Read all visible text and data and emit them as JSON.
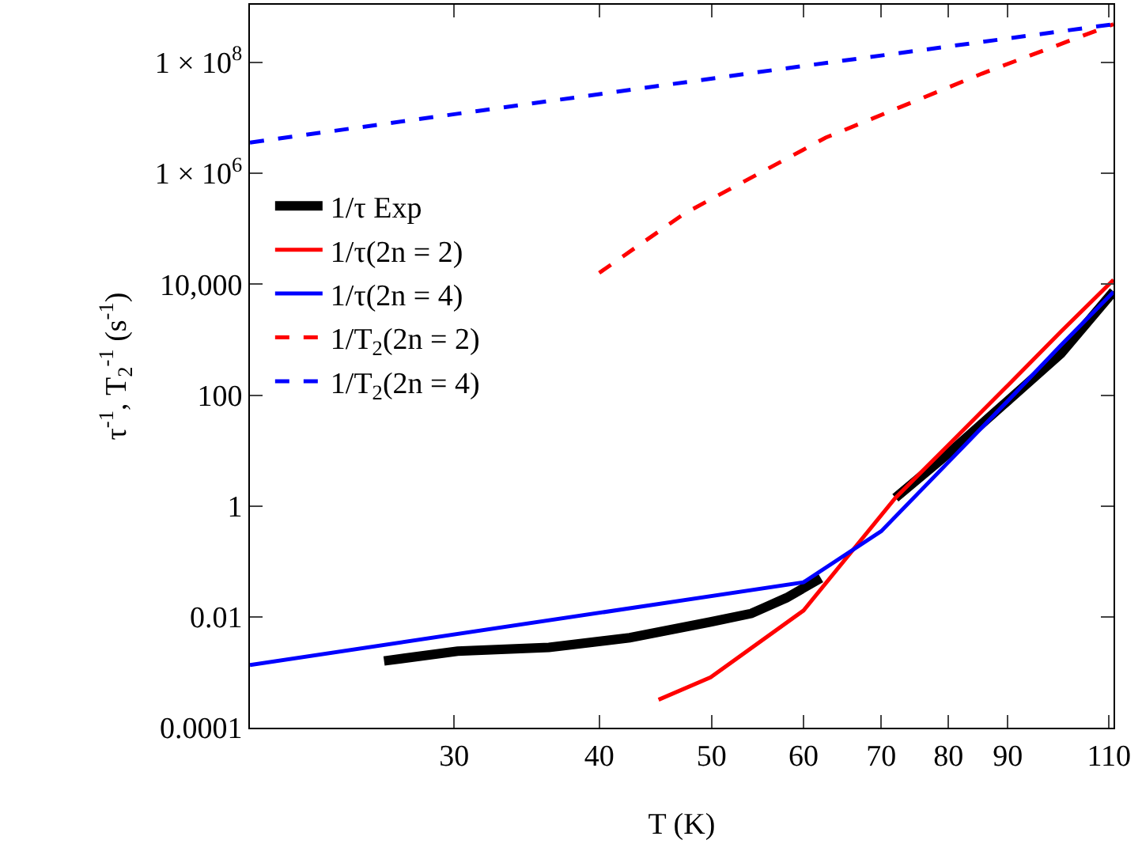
{
  "chart_data": {
    "type": "line",
    "xlabel": "T (K)",
    "ylabel": "τ$^{-1}$, T$_{2}$$^{-1}$ (s$^{-1}$)",
    "log": "xy",
    "grid": false,
    "legend": "left",
    "marker": "none",
    "xlim": [
      20,
      111
    ],
    "xticks": [
      30,
      40,
      50,
      60,
      70,
      80,
      90,
      110
    ],
    "ylim": [
      0.0001,
      1100000000
    ],
    "yticks": [
      0.0001,
      0.01,
      1,
      100,
      {
        "value": 10000,
        "label": "10,000"
      },
      {
        "value": 1000000,
        "label": "1 × 10$^{6}$"
      },
      {
        "value": 100000000,
        "label": "1 × 10$^{8}$"
      }
    ],
    "series": [
      {
        "name": "1/τ Exp",
        "color": "#000000",
        "line_style": "solid",
        "x": [
          26.1,
          30.2,
          36.2,
          42.5,
          49.9,
          54.1,
          58,
          62.1,
          67,
          72,
          80,
          90,
          100,
          111
        ],
        "values": [
          0.0016,
          0.0024,
          0.0028,
          0.0042,
          0.0081,
          0.0115,
          0.022,
          0.05,
          null,
          1.4,
          8.9,
          79,
          560,
          7400
        ]
      },
      {
        "name": "1/τ(2n = 2)",
        "color": "#ff0000",
        "line_style": "solid",
        "x": [
          45,
          49.9,
          60,
          72,
          80,
          90,
          100,
          111
        ],
        "values": [
          0.00032,
          0.00081,
          0.013,
          1.4,
          12.6,
          150,
          1400,
          12000
        ]
      },
      {
        "name": "1/τ(2n = 4)",
        "color": "#0000ff",
        "line_style": "solid",
        "x": [
          20,
          60,
          70,
          80,
          90,
          100,
          111
        ],
        "values": [
          0.00135,
          0.042,
          0.35,
          6.2,
          79,
          790,
          7300
        ]
      },
      {
        "name": "1/T$_{2}$(2n = 2)",
        "color": "#ff0000",
        "line_style": "dashed",
        "x": [
          40,
          47.4,
          62.7,
          85.5,
          111
        ],
        "values": [
          16000,
          190000,
          4400000,
          63000000,
          490000000
        ]
      },
      {
        "name": "1/T$_{2}$(2n = 4)",
        "color": "#0000ff",
        "line_style": "dashed",
        "x": [
          20,
          57.3,
          111
        ],
        "values": [
          3600000,
          76000000,
          490000000
        ]
      }
    ]
  }
}
